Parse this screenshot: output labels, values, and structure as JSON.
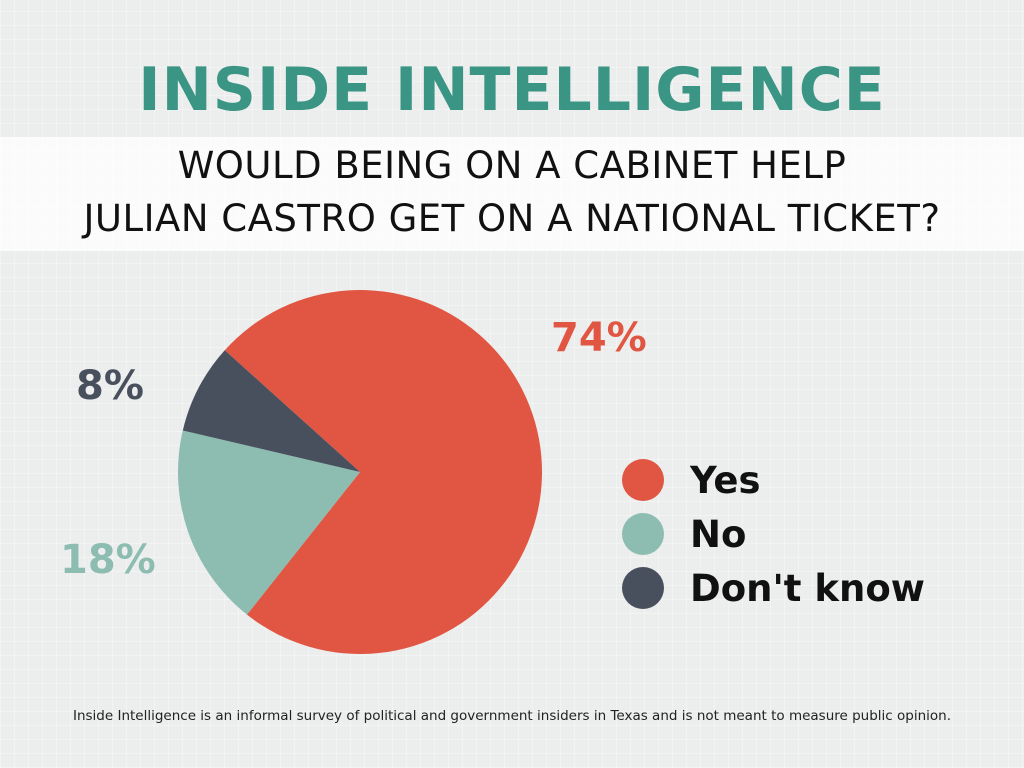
{
  "brand": "INSIDE INTELLIGENCE",
  "question": {
    "line1": "WOULD BEING ON A CABINET HELP",
    "line2": "JULIAN CASTRO GET ON A NATIONAL TICKET?"
  },
  "colors": {
    "brand": "#3a9584",
    "yes": "#e15643",
    "no": "#8dbdb0",
    "dont_know": "#47505c"
  },
  "chart_data": {
    "type": "pie",
    "categories": [
      "Yes",
      "No",
      "Don't know"
    ],
    "values": [
      74,
      18,
      8
    ],
    "labels": [
      "74%",
      "18%",
      "8%"
    ],
    "title": "WOULD BEING ON A CABINET HELP JULIAN CASTRO GET ON A NATIONAL TICKET?",
    "legend": "right"
  },
  "footnote": "Inside Intelligence is an informal survey of political and government insiders in Texas and is not meant to measure public opinion."
}
